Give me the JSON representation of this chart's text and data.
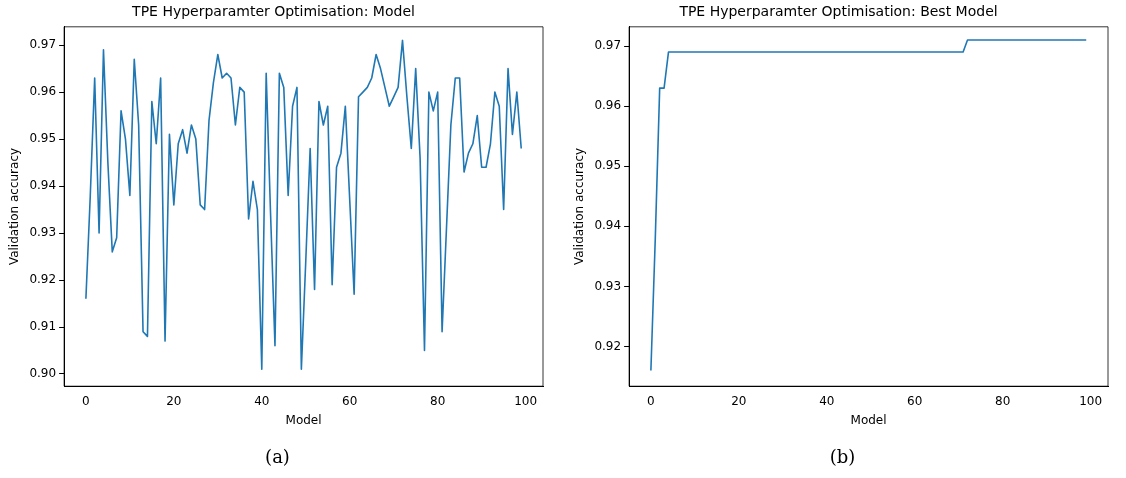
{
  "chart_data": [
    {
      "type": "line",
      "title": "TPE Hyperparamter Optimisation: Model",
      "xlabel": "Model",
      "ylabel": "Validation accuracy",
      "x": [
        0,
        1,
        2,
        3,
        4,
        5,
        6,
        7,
        8,
        9,
        10,
        11,
        12,
        13,
        14,
        15,
        16,
        17,
        18,
        19,
        20,
        21,
        22,
        23,
        24,
        25,
        26,
        27,
        28,
        29,
        30,
        31,
        32,
        33,
        34,
        35,
        36,
        37,
        38,
        39,
        40,
        41,
        42,
        43,
        44,
        45,
        46,
        47,
        48,
        49,
        50,
        51,
        52,
        53,
        54,
        55,
        56,
        57,
        58,
        59,
        60,
        61,
        62,
        63,
        64,
        65,
        66,
        67,
        68,
        69,
        70,
        71,
        72,
        73,
        74,
        75,
        76,
        77,
        78,
        79,
        80,
        81,
        82,
        83,
        84,
        85,
        86,
        87,
        88,
        89,
        90,
        91,
        92,
        93,
        94,
        95,
        96,
        97,
        98,
        99
      ],
      "series": [
        {
          "color": "#1f77b4",
          "values": [
            0.916,
            0.938,
            0.963,
            0.93,
            0.969,
            0.945,
            0.926,
            0.929,
            0.956,
            0.95,
            0.938,
            0.967,
            0.953,
            0.909,
            0.908,
            0.958,
            0.949,
            0.963,
            0.907,
            0.951,
            0.936,
            0.949,
            0.952,
            0.947,
            0.953,
            0.95,
            0.936,
            0.935,
            0.954,
            0.962,
            0.968,
            0.963,
            0.964,
            0.963,
            0.953,
            0.961,
            0.96,
            0.933,
            0.941,
            0.935,
            0.901,
            0.964,
            0.934,
            0.906,
            0.964,
            0.961,
            0.938,
            0.957,
            0.961,
            0.901,
            0.924,
            0.948,
            0.918,
            0.958,
            0.953,
            0.957,
            0.919,
            0.944,
            0.947,
            0.957,
            0.937,
            0.917,
            0.959,
            0.96,
            0.961,
            0.963,
            0.968,
            0.965,
            0.961,
            0.957,
            0.959,
            0.961,
            0.971,
            0.959,
            0.948,
            0.965,
            0.946,
            0.905,
            0.96,
            0.956,
            0.96,
            0.909,
            0.931,
            0.953,
            0.963,
            0.963,
            0.943,
            0.947,
            0.949,
            0.955,
            0.944,
            0.944,
            0.949,
            0.96,
            0.957,
            0.935,
            0.965,
            0.951,
            0.96,
            0.948
          ]
        }
      ],
      "xlim": [
        -4.95,
        103.95
      ],
      "xticks": [
        0,
        20,
        40,
        60,
        80,
        100
      ],
      "ylim": [
        0.8974,
        0.9739
      ],
      "yticks": [
        {
          "value": 0.9,
          "label": "0.90"
        },
        0.91,
        0.92,
        0.93,
        0.94,
        0.95,
        0.96,
        0.97
      ],
      "annotations": [
        "(a)"
      ]
    },
    {
      "type": "line",
      "title": "TPE Hyperparamter Optimisation: Best Model",
      "xlabel": "Model",
      "ylabel": "Validation accuracy",
      "x": [
        0,
        1,
        2,
        3,
        4,
        5,
        6,
        7,
        8,
        9,
        10,
        11,
        12,
        13,
        14,
        15,
        16,
        17,
        18,
        19,
        20,
        21,
        22,
        23,
        24,
        25,
        26,
        27,
        28,
        29,
        30,
        31,
        32,
        33,
        34,
        35,
        36,
        37,
        38,
        39,
        40,
        41,
        42,
        43,
        44,
        45,
        46,
        47,
        48,
        49,
        50,
        51,
        52,
        53,
        54,
        55,
        56,
        57,
        58,
        59,
        60,
        61,
        62,
        63,
        64,
        65,
        66,
        67,
        68,
        69,
        70,
        71,
        72,
        73,
        74,
        75,
        76,
        77,
        78,
        79,
        80,
        81,
        82,
        83,
        84,
        85,
        86,
        87,
        88,
        89,
        90,
        91,
        92,
        93,
        94,
        95,
        96,
        97,
        98,
        99
      ],
      "series": [
        {
          "color": "#1f77b4",
          "values": [
            0.916,
            0.938,
            0.963,
            0.963,
            0.969,
            0.969,
            0.969,
            0.969,
            0.969,
            0.969,
            0.969,
            0.969,
            0.969,
            0.969,
            0.969,
            0.969,
            0.969,
            0.969,
            0.969,
            0.969,
            0.969,
            0.969,
            0.969,
            0.969,
            0.969,
            0.969,
            0.969,
            0.969,
            0.969,
            0.969,
            0.969,
            0.969,
            0.969,
            0.969,
            0.969,
            0.969,
            0.969,
            0.969,
            0.969,
            0.969,
            0.969,
            0.969,
            0.969,
            0.969,
            0.969,
            0.969,
            0.969,
            0.969,
            0.969,
            0.969,
            0.969,
            0.969,
            0.969,
            0.969,
            0.969,
            0.969,
            0.969,
            0.969,
            0.969,
            0.969,
            0.969,
            0.969,
            0.969,
            0.969,
            0.969,
            0.969,
            0.969,
            0.969,
            0.969,
            0.969,
            0.969,
            0.969,
            0.971,
            0.971,
            0.971,
            0.971,
            0.971,
            0.971,
            0.971,
            0.971,
            0.971,
            0.971,
            0.971,
            0.971,
            0.971,
            0.971,
            0.971,
            0.971,
            0.971,
            0.971,
            0.971,
            0.971,
            0.971,
            0.971,
            0.971,
            0.971,
            0.971,
            0.971,
            0.971,
            0.971
          ]
        }
      ],
      "xlim": [
        -4.95,
        103.95
      ],
      "xticks": [
        0,
        20,
        40,
        60,
        80,
        100
      ],
      "ylim": [
        0.9134,
        0.9732
      ],
      "yticks": [
        0.92,
        0.93,
        0.94,
        0.95,
        0.96,
        0.97
      ],
      "annotations": [
        "(b)"
      ]
    }
  ]
}
